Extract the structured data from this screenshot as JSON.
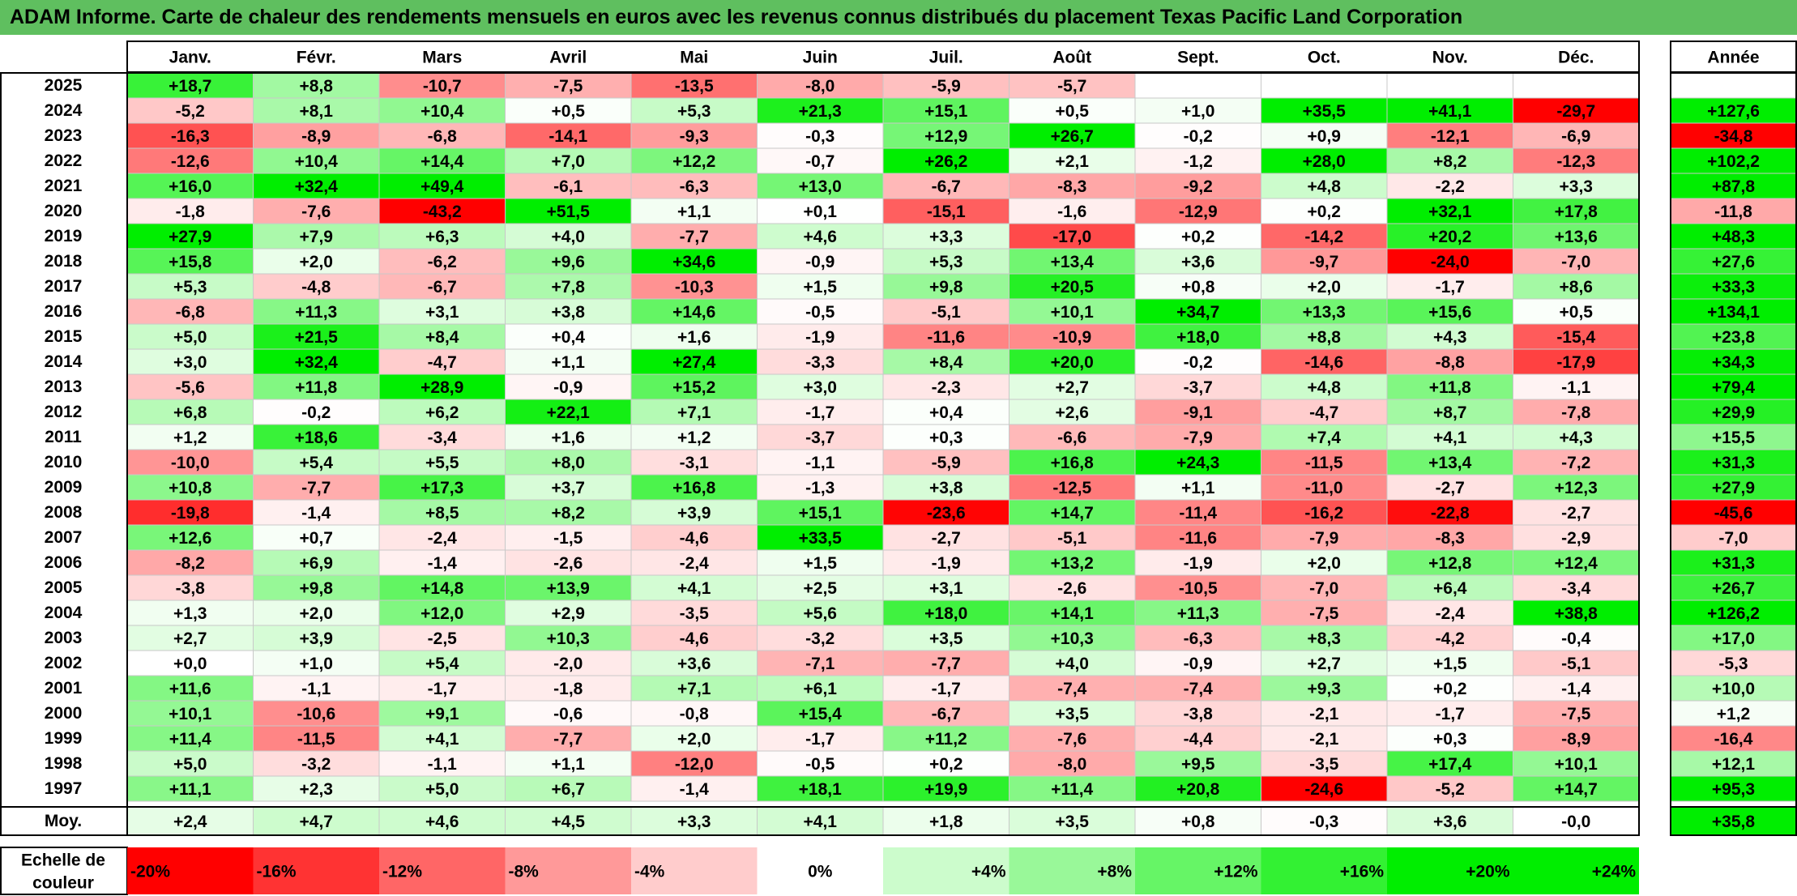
{
  "title": "ADAM Informe. Carte de chaleur des rendements mensuels en euros avec les revenus connus distribués du placement Texas Pacific Land Corporation",
  "chart_data": {
    "type": "heatmap",
    "months": [
      "Janv.",
      "Févr.",
      "Mars",
      "Avril",
      "Mai",
      "Juin",
      "Juil.",
      "Août",
      "Sept.",
      "Oct.",
      "Nov.",
      "Déc."
    ],
    "year_header": "Année",
    "rows": [
      {
        "year": "2025",
        "values": [
          "+18,7",
          "+8,8",
          "-10,7",
          "-7,5",
          "-13,5",
          "-8,0",
          "-5,9",
          "-5,7",
          "",
          "",
          "",
          ""
        ],
        "annual": ""
      },
      {
        "year": "2024",
        "values": [
          "-5,2",
          "+8,1",
          "+10,4",
          "+0,5",
          "+5,3",
          "+21,3",
          "+15,1",
          "+0,5",
          "+1,0",
          "+35,5",
          "+41,1",
          "-29,7"
        ],
        "annual": "+127,6"
      },
      {
        "year": "2023",
        "values": [
          "-16,3",
          "-8,9",
          "-6,8",
          "-14,1",
          "-9,3",
          "-0,3",
          "+12,9",
          "+26,7",
          "-0,2",
          "+0,9",
          "-12,1",
          "-6,9"
        ],
        "annual": "-34,8"
      },
      {
        "year": "2022",
        "values": [
          "-12,6",
          "+10,4",
          "+14,4",
          "+7,0",
          "+12,2",
          "-0,7",
          "+26,2",
          "+2,1",
          "-1,2",
          "+28,0",
          "+8,2",
          "-12,3"
        ],
        "annual": "+102,2"
      },
      {
        "year": "2021",
        "values": [
          "+16,0",
          "+32,4",
          "+49,4",
          "-6,1",
          "-6,3",
          "+13,0",
          "-6,7",
          "-8,3",
          "-9,2",
          "+4,8",
          "-2,2",
          "+3,3"
        ],
        "annual": "+87,8"
      },
      {
        "year": "2020",
        "values": [
          "-1,8",
          "-7,6",
          "-43,2",
          "+51,5",
          "+1,1",
          "+0,1",
          "-15,1",
          "-1,6",
          "-12,9",
          "+0,2",
          "+32,1",
          "+17,8"
        ],
        "annual": "-11,8"
      },
      {
        "year": "2019",
        "values": [
          "+27,9",
          "+7,9",
          "+6,3",
          "+4,0",
          "-7,7",
          "+4,6",
          "+3,3",
          "-17,0",
          "+0,2",
          "-14,2",
          "+20,2",
          "+13,6"
        ],
        "annual": "+48,3"
      },
      {
        "year": "2018",
        "values": [
          "+15,8",
          "+2,0",
          "-6,2",
          "+9,6",
          "+34,6",
          "-0,9",
          "+5,3",
          "+13,4",
          "+3,6",
          "-9,7",
          "-24,0",
          "-7,0"
        ],
        "annual": "+27,6"
      },
      {
        "year": "2017",
        "values": [
          "+5,3",
          "-4,8",
          "-6,7",
          "+7,8",
          "-10,3",
          "+1,5",
          "+9,8",
          "+20,5",
          "+0,8",
          "+2,0",
          "-1,7",
          "+8,6"
        ],
        "annual": "+33,3"
      },
      {
        "year": "2016",
        "values": [
          "-6,8",
          "+11,3",
          "+3,1",
          "+3,8",
          "+14,6",
          "-0,5",
          "-5,1",
          "+10,1",
          "+34,7",
          "+13,3",
          "+15,6",
          "+0,5"
        ],
        "annual": "+134,1"
      },
      {
        "year": "2015",
        "values": [
          "+5,0",
          "+21,5",
          "+8,4",
          "+0,4",
          "+1,6",
          "-1,9",
          "-11,6",
          "-10,9",
          "+18,0",
          "+8,8",
          "+4,3",
          "-15,4"
        ],
        "annual": "+23,8"
      },
      {
        "year": "2014",
        "values": [
          "+3,0",
          "+32,4",
          "-4,7",
          "+1,1",
          "+27,4",
          "-3,3",
          "+8,4",
          "+20,0",
          "-0,2",
          "-14,6",
          "-8,8",
          "-17,9"
        ],
        "annual": "+34,3"
      },
      {
        "year": "2013",
        "values": [
          "-5,6",
          "+11,8",
          "+28,9",
          "-0,9",
          "+15,2",
          "+3,0",
          "-2,3",
          "+2,7",
          "-3,7",
          "+4,8",
          "+11,8",
          "-1,1"
        ],
        "annual": "+79,4"
      },
      {
        "year": "2012",
        "values": [
          "+6,8",
          "-0,2",
          "+6,2",
          "+22,1",
          "+7,1",
          "-1,7",
          "+0,4",
          "+2,6",
          "-9,1",
          "-4,7",
          "+8,7",
          "-7,8"
        ],
        "annual": "+29,9"
      },
      {
        "year": "2011",
        "values": [
          "+1,2",
          "+18,6",
          "-3,4",
          "+1,6",
          "+1,2",
          "-3,7",
          "+0,3",
          "-6,6",
          "-7,9",
          "+7,4",
          "+4,1",
          "+4,3"
        ],
        "annual": "+15,5"
      },
      {
        "year": "2010",
        "values": [
          "-10,0",
          "+5,4",
          "+5,5",
          "+8,0",
          "-3,1",
          "-1,1",
          "-5,9",
          "+16,8",
          "+24,3",
          "-11,5",
          "+13,4",
          "-7,2"
        ],
        "annual": "+31,3"
      },
      {
        "year": "2009",
        "values": [
          "+10,8",
          "-7,7",
          "+17,3",
          "+3,7",
          "+16,8",
          "-1,3",
          "+3,8",
          "-12,5",
          "+1,1",
          "-11,0",
          "-2,7",
          "+12,3"
        ],
        "annual": "+27,9"
      },
      {
        "year": "2008",
        "values": [
          "-19,8",
          "-1,4",
          "+8,5",
          "+8,2",
          "+3,9",
          "+15,1",
          "-23,6",
          "+14,7",
          "-11,4",
          "-16,2",
          "-22,8",
          "-2,7"
        ],
        "annual": "-45,6"
      },
      {
        "year": "2007",
        "values": [
          "+12,6",
          "+0,7",
          "-2,4",
          "-1,5",
          "-4,6",
          "+33,5",
          "-2,7",
          "-5,1",
          "-11,6",
          "-7,9",
          "-8,3",
          "-2,9"
        ],
        "annual": "-7,0"
      },
      {
        "year": "2006",
        "values": [
          "-8,2",
          "+6,9",
          "-1,4",
          "-2,6",
          "-2,4",
          "+1,5",
          "-1,9",
          "+13,2",
          "-1,9",
          "+2,0",
          "+12,8",
          "+12,4"
        ],
        "annual": "+31,3"
      },
      {
        "year": "2005",
        "values": [
          "-3,8",
          "+9,8",
          "+14,8",
          "+13,9",
          "+4,1",
          "+2,5",
          "+3,1",
          "-2,6",
          "-10,5",
          "-7,0",
          "+6,4",
          "-3,4"
        ],
        "annual": "+26,7"
      },
      {
        "year": "2004",
        "values": [
          "+1,3",
          "+2,0",
          "+12,0",
          "+2,9",
          "-3,5",
          "+5,6",
          "+18,0",
          "+14,1",
          "+11,3",
          "-7,5",
          "-2,4",
          "+38,8"
        ],
        "annual": "+126,2"
      },
      {
        "year": "2003",
        "values": [
          "+2,7",
          "+3,9",
          "-2,5",
          "+10,3",
          "-4,6",
          "-3,2",
          "+3,5",
          "+10,3",
          "-6,3",
          "+8,3",
          "-4,2",
          "-0,4"
        ],
        "annual": "+17,0"
      },
      {
        "year": "2002",
        "values": [
          "+0,0",
          "+1,0",
          "+5,4",
          "-2,0",
          "+3,6",
          "-7,1",
          "-7,7",
          "+4,0",
          "-0,9",
          "+2,7",
          "+1,5",
          "-5,1"
        ],
        "annual": "-5,3"
      },
      {
        "year": "2001",
        "values": [
          "+11,6",
          "-1,1",
          "-1,7",
          "-1,8",
          "+7,1",
          "+6,1",
          "-1,7",
          "-7,4",
          "-7,4",
          "+9,3",
          "+0,2",
          "-1,4"
        ],
        "annual": "+10,0"
      },
      {
        "year": "2000",
        "values": [
          "+10,1",
          "-10,6",
          "+9,1",
          "-0,6",
          "-0,8",
          "+15,4",
          "-6,7",
          "+3,5",
          "-3,8",
          "-2,1",
          "-1,7",
          "-7,5"
        ],
        "annual": "+1,2"
      },
      {
        "year": "1999",
        "values": [
          "+11,4",
          "-11,5",
          "+4,1",
          "-7,7",
          "+2,0",
          "-1,7",
          "+11,2",
          "-7,6",
          "-4,4",
          "-2,1",
          "+0,3",
          "-8,9"
        ],
        "annual": "-16,4"
      },
      {
        "year": "1998",
        "values": [
          "+5,0",
          "-3,2",
          "-1,1",
          "+1,1",
          "-12,0",
          "-0,5",
          "+0,2",
          "-8,0",
          "+9,5",
          "-3,5",
          "+17,4",
          "+10,1"
        ],
        "annual": "+12,1"
      },
      {
        "year": "1997",
        "values": [
          "+11,1",
          "+2,3",
          "+5,0",
          "+6,7",
          "-1,4",
          "+18,1",
          "+19,9",
          "+11,4",
          "+20,8",
          "-24,6",
          "-5,2",
          "+14,7"
        ],
        "annual": "+95,3"
      }
    ],
    "average": {
      "label": "Moy.",
      "values": [
        "+2,4",
        "+4,7",
        "+4,6",
        "+4,5",
        "+3,3",
        "+4,1",
        "+1,8",
        "+3,5",
        "+0,8",
        "-0,3",
        "+3,6",
        "-0,0"
      ],
      "annual": "+35,8"
    },
    "scale": {
      "label_line1": "Echelle de",
      "label_line2": "couleur",
      "steps": [
        "-20%",
        "-16%",
        "-12%",
        "-8%",
        "-4%",
        "0%",
        "+4%",
        "+8%",
        "+12%",
        "+16%",
        "+20%",
        "+24%"
      ],
      "step_values": [
        -20,
        -16,
        -12,
        -8,
        -4,
        0,
        4,
        8,
        12,
        16,
        20,
        24
      ]
    },
    "colors": {
      "negative": "#ff0000",
      "neutral": "#ffffff",
      "positive": "#00ee00"
    }
  }
}
